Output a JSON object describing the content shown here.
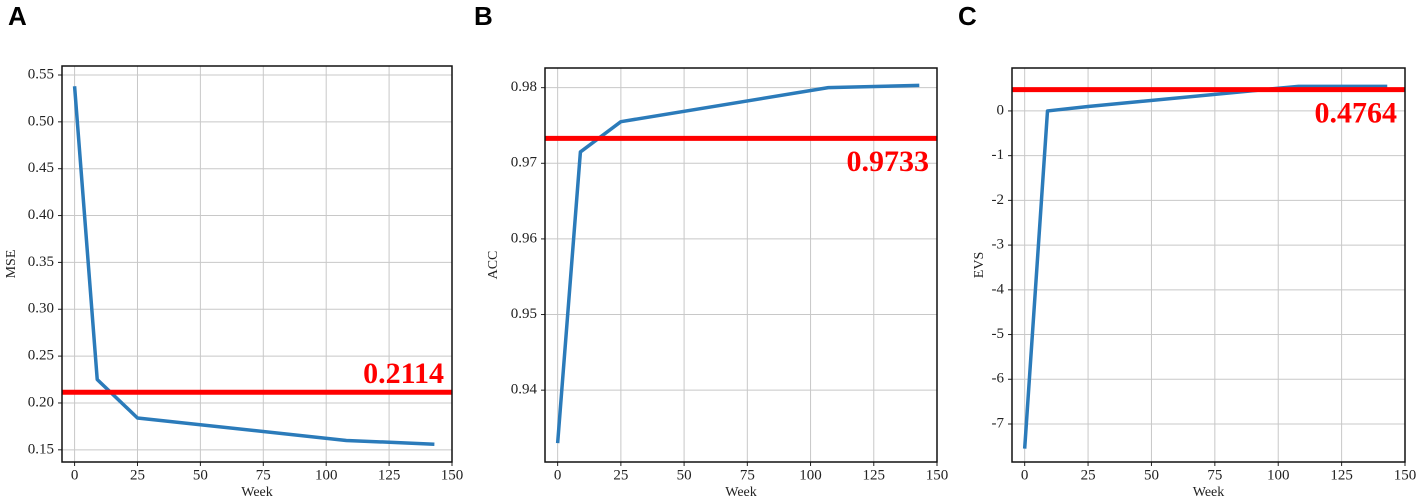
{
  "chart_data": [
    {
      "type": "line",
      "title": "A",
      "xlabel": "Week",
      "ylabel": "MSE",
      "x": [
        0,
        9,
        25,
        108,
        143
      ],
      "values": [
        0.538,
        0.225,
        0.184,
        0.16,
        0.156
      ],
      "color": "#2b7bba",
      "xlim": [
        -5,
        150
      ],
      "ylim": [
        0.137,
        0.5596
      ],
      "xticks": [
        0,
        25,
        50,
        75,
        100,
        125,
        150
      ],
      "yticks": [
        0.15,
        {
          "value": 0.2,
          "label": "0.20"
        },
        0.25,
        {
          "value": 0.3,
          "label": "0.30"
        },
        0.35,
        {
          "value": 0.4,
          "label": "0.40"
        },
        0.45,
        {
          "value": 0.5,
          "label": "0.50"
        },
        0.55
      ],
      "grid": true,
      "hline": 0.2114,
      "hline_color": "#ff0000"
    },
    {
      "type": "line",
      "title": "B",
      "xlabel": "Week",
      "ylabel": "ACC",
      "x": [
        0,
        9,
        25,
        107,
        143
      ],
      "values": [
        0.933,
        0.9715,
        0.9755,
        0.98,
        0.9803
      ],
      "color": "#2b7bba",
      "xlim": [
        -5,
        150
      ],
      "ylim": [
        0.9305,
        0.9826
      ],
      "xticks": [
        0,
        25,
        50,
        75,
        100,
        125,
        150
      ],
      "yticks": [
        0.94,
        0.95,
        0.96,
        0.97,
        0.98
      ],
      "grid": true,
      "hline": 0.9733,
      "hline_color": "#ff0000"
    },
    {
      "type": "line",
      "title": "C",
      "xlabel": "Week",
      "ylabel": "EVS",
      "x": [
        0,
        9,
        25,
        108,
        143
      ],
      "values": [
        -7.55,
        0.0,
        0.1,
        0.55,
        0.55
      ],
      "color": "#2b7bba",
      "xlim": [
        -5,
        150
      ],
      "ylim": [
        -7.85,
        0.96
      ],
      "xticks": [
        0,
        25,
        50,
        75,
        100,
        125,
        150
      ],
      "yticks": [
        -7,
        -6,
        -5,
        -4,
        -3,
        -2,
        -1,
        0
      ],
      "grid": true,
      "hline": 0.4764,
      "hline_color": "#ff0000"
    }
  ]
}
